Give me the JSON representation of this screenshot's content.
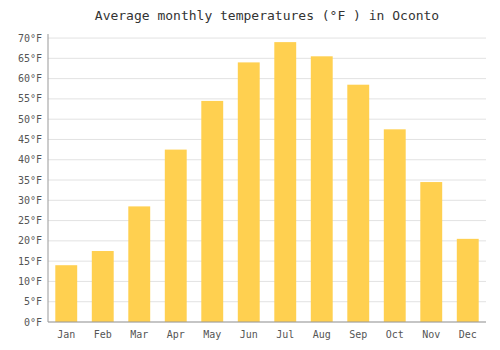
{
  "chart_data": {
    "type": "bar",
    "title": "Average monthly temperatures (°F ) in Oconto",
    "categories": [
      "Jan",
      "Feb",
      "Mar",
      "Apr",
      "May",
      "Jun",
      "Jul",
      "Aug",
      "Sep",
      "Oct",
      "Nov",
      "Dec"
    ],
    "values": [
      14,
      17.5,
      28.5,
      42.5,
      54.5,
      64,
      69,
      65.5,
      58.5,
      47.5,
      34.5,
      20.5
    ],
    "color": "#FFD050",
    "ylim": [
      0,
      71
    ],
    "yticks": [
      {
        "value": 0,
        "label": "0°F"
      },
      {
        "value": 5,
        "label": "5°F"
      },
      {
        "value": 10,
        "label": "10°F"
      },
      {
        "value": 15,
        "label": "15°F"
      },
      {
        "value": 20,
        "label": "20°F"
      },
      {
        "value": 25,
        "label": "25°F"
      },
      {
        "value": 30,
        "label": "30°F"
      },
      {
        "value": 35,
        "label": "35°F"
      },
      {
        "value": 40,
        "label": "40°F"
      },
      {
        "value": 45,
        "label": "45°F"
      },
      {
        "value": 50,
        "label": "50°F"
      },
      {
        "value": 55,
        "label": "55°F"
      },
      {
        "value": 60,
        "label": "60°F"
      },
      {
        "value": 65,
        "label": "65°F"
      },
      {
        "value": 70,
        "label": "70°F"
      }
    ],
    "grid": true
  }
}
